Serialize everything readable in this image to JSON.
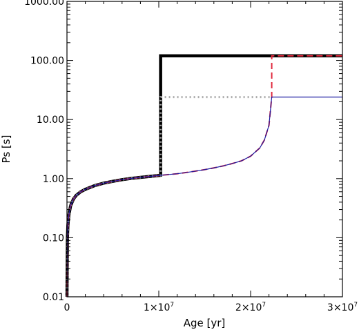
{
  "chart_data": {
    "type": "line",
    "xlabel": "Age [yr]",
    "ylabel": "Ps [s]",
    "xlim": [
      0,
      30000000
    ],
    "ylim": [
      0.01,
      1000
    ],
    "yscale": "log",
    "grid": false,
    "x_ticks": [
      {
        "value": 0,
        "label": "0"
      },
      {
        "value": 10000000,
        "mant": "1×10",
        "exp": "7"
      },
      {
        "value": 20000000,
        "mant": "2×10",
        "exp": "7"
      },
      {
        "value": 30000000,
        "mant": "3×10",
        "exp": "7"
      }
    ],
    "y_ticks": [
      {
        "value": 0.01,
        "label": "0.01"
      },
      {
        "value": 0.1,
        "label": "0.10"
      },
      {
        "value": 1,
        "label": "1.00"
      },
      {
        "value": 10,
        "label": "10.00"
      },
      {
        "value": 100,
        "label": "100.00"
      },
      {
        "value": 1000,
        "label": "1000.00"
      }
    ],
    "series": [
      {
        "style": "solid-thick",
        "color": "#000000",
        "x": [
          0,
          50000,
          100000,
          200000,
          400000,
          700000,
          1000000,
          1500000,
          2000000,
          3000000,
          4000000,
          5000000,
          6000000,
          7000000,
          8000000,
          9000000,
          10000000,
          10200000,
          10200000,
          30000000
        ],
        "y": [
          0.01,
          0.1,
          0.16,
          0.24,
          0.35,
          0.45,
          0.52,
          0.6,
          0.66,
          0.76,
          0.84,
          0.9,
          0.96,
          1.01,
          1.05,
          1.09,
          1.13,
          1.14,
          120,
          120
        ]
      },
      {
        "style": "dotted",
        "color": "#aaaaaa",
        "x": [
          0,
          50000,
          100000,
          200000,
          400000,
          700000,
          1000000,
          1500000,
          2000000,
          3000000,
          4000000,
          5000000,
          6000000,
          7000000,
          8000000,
          9000000,
          10000000,
          10200000,
          10200000,
          22300000
        ],
        "y": [
          0.01,
          0.1,
          0.16,
          0.24,
          0.35,
          0.45,
          0.52,
          0.6,
          0.66,
          0.76,
          0.84,
          0.9,
          0.96,
          1.01,
          1.05,
          1.09,
          1.13,
          1.14,
          24,
          24
        ]
      },
      {
        "style": "dashed",
        "color": "#e0283c",
        "x": [
          0,
          50000,
          100000,
          200000,
          400000,
          700000,
          1000000,
          1500000,
          2000000,
          3000000,
          4000000,
          5000000,
          6000000,
          7000000,
          8000000,
          9000000,
          10000000,
          11000000,
          12000000,
          13000000,
          14000000,
          15000000,
          16000000,
          17000000,
          18000000,
          19000000,
          20000000,
          21000000,
          21500000,
          22000000,
          22300000,
          22300000,
          30000000
        ],
        "y": [
          0.01,
          0.1,
          0.16,
          0.24,
          0.35,
          0.45,
          0.52,
          0.6,
          0.66,
          0.76,
          0.84,
          0.9,
          0.96,
          1.01,
          1.05,
          1.09,
          1.13,
          1.17,
          1.21,
          1.27,
          1.34,
          1.42,
          1.52,
          1.64,
          1.8,
          2.0,
          2.4,
          3.3,
          4.5,
          8.0,
          24,
          120,
          120
        ]
      },
      {
        "style": "solid-thin",
        "color": "#1a1aa0",
        "x": [
          0,
          50000,
          100000,
          200000,
          400000,
          700000,
          1000000,
          1500000,
          2000000,
          3000000,
          4000000,
          5000000,
          6000000,
          7000000,
          8000000,
          9000000,
          10000000,
          11000000,
          12000000,
          13000000,
          14000000,
          15000000,
          16000000,
          17000000,
          18000000,
          19000000,
          20000000,
          21000000,
          21500000,
          22000000,
          22300000,
          30000000
        ],
        "y": [
          0.01,
          0.1,
          0.16,
          0.24,
          0.35,
          0.45,
          0.52,
          0.6,
          0.66,
          0.76,
          0.84,
          0.9,
          0.96,
          1.01,
          1.05,
          1.09,
          1.13,
          1.17,
          1.21,
          1.27,
          1.34,
          1.42,
          1.52,
          1.64,
          1.8,
          2.0,
          2.4,
          3.3,
          4.5,
          8.0,
          24,
          24
        ]
      }
    ]
  }
}
